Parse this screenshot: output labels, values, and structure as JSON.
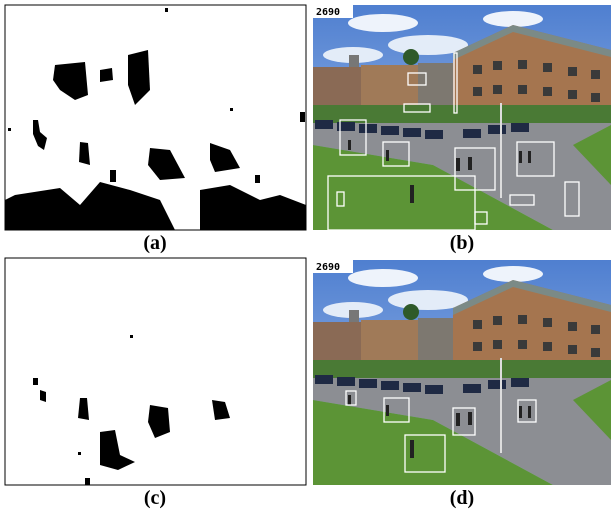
{
  "panels": [
    {
      "label": "(a)"
    },
    {
      "label": "(b)",
      "frame": "2690"
    },
    {
      "label": "(c)"
    },
    {
      "label": "(d)",
      "frame": "2690"
    }
  ]
}
